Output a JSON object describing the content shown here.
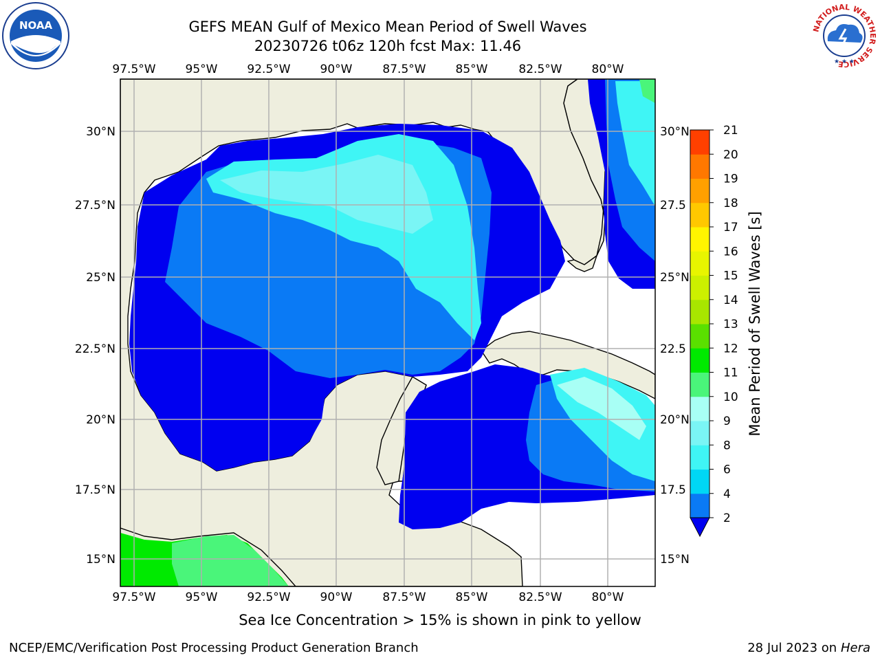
{
  "title": {
    "line1": "GEFS MEAN Gulf of Mexico Mean Period of Swell Waves",
    "line2": "20230726 t06z 120h fcst   Max: 11.46"
  },
  "map": {
    "lon_labels": [
      "97.5°W",
      "95°W",
      "92.5°W",
      "90°W",
      "87.5°W",
      "85°W",
      "82.5°W",
      "80°W"
    ],
    "lat_labels_left": [
      "30°N",
      "27.5°N",
      "25°N",
      "22.5°N",
      "20°N",
      "17.5°N",
      "15°N"
    ],
    "lat_labels_right": [
      "30°N",
      "27.5",
      "25°N",
      "22.5",
      "20°N",
      "17.5",
      "15°N"
    ],
    "land_color": "#EEEEDE",
    "grid_color": "#B0B0B0"
  },
  "colorbar": {
    "label": "Mean Period of Swell Waves [s]",
    "ticks": [
      "2",
      "4",
      "6",
      "8",
      "9",
      "10",
      "11",
      "12",
      "13",
      "14",
      "15",
      "16",
      "17",
      "18",
      "19",
      "20",
      "21"
    ],
    "colors": [
      "#0A7AF5",
      "#00D7F5",
      "#3FF5F5",
      "#7AF5F5",
      "#A8FFF5",
      "#4AF57A",
      "#00EA00",
      "#5AE000",
      "#A8E600",
      "#CCF000",
      "#E8F500",
      "#FFF500",
      "#FFC800",
      "#FFA000",
      "#FF7800",
      "#FF4000",
      "#FF0000"
    ],
    "underflow_color": "#0000F0"
  },
  "ice_note": "Sea Ice Concentration > 15% is shown in pink to yellow",
  "footer": {
    "left": "NCEP/EMC/Verification Post Processing Product Generation Branch",
    "right_date": "28 Jul 2023 on ",
    "right_host": "Hera"
  },
  "logos": {
    "noaa": "NOAA",
    "nws_ring": "NATIONAL WEATHER SERVICE"
  }
}
